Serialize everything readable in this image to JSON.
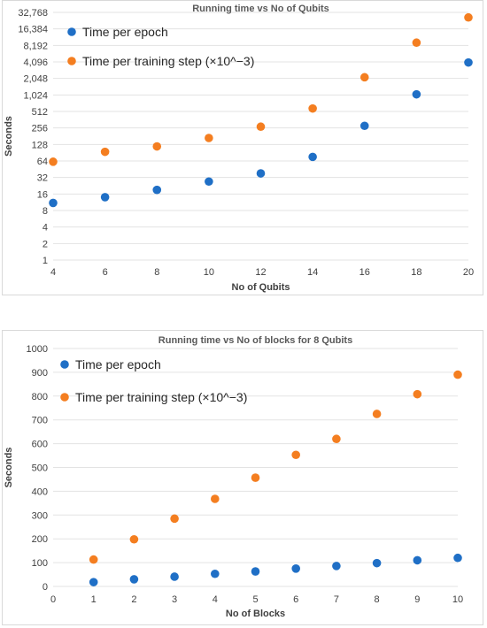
{
  "chart_data": [
    {
      "type": "scatter",
      "title": "Running time vs No of Qubits",
      "xlabel": "No of Qubits",
      "ylabel": "Seconds",
      "y_scale": "log2",
      "xlim": [
        4,
        20
      ],
      "ylim": [
        1,
        32768
      ],
      "x_ticks": [
        "4",
        "6",
        "8",
        "10",
        "12",
        "14",
        "16",
        "18",
        "20"
      ],
      "y_ticks": [
        "1",
        "2",
        "4",
        "8",
        "16",
        "32",
        "64",
        "128",
        "256",
        "512",
        "1,024",
        "2,048",
        "4,096",
        "8,192",
        "16,384",
        "32,768"
      ],
      "grid": true,
      "legend_position": "top-left",
      "series": [
        {
          "name": "Time per epoch",
          "color": "#1f6fc6",
          "x": [
            4,
            6,
            8,
            10,
            12,
            14,
            16,
            18,
            20
          ],
          "y": [
            11,
            14,
            19,
            27,
            38,
            76,
            280,
            1050,
            4000
          ]
        },
        {
          "name": "Time per training step (×10^−3)",
          "color": "#f47e20",
          "x": [
            4,
            6,
            8,
            10,
            12,
            14,
            16,
            18,
            20
          ],
          "y": [
            62,
            94,
            118,
            168,
            270,
            580,
            2150,
            9200,
            26500
          ]
        }
      ]
    },
    {
      "type": "scatter",
      "title": "Running time vs No of blocks for 8 Qubits",
      "xlabel": "No of Blocks",
      "ylabel": "Seconds",
      "xlim": [
        0,
        10
      ],
      "ylim": [
        0,
        1000
      ],
      "x_ticks": [
        "0",
        "1",
        "2",
        "3",
        "4",
        "5",
        "6",
        "7",
        "8",
        "9",
        "10"
      ],
      "y_ticks": [
        "0",
        "100",
        "200",
        "300",
        "400",
        "500",
        "600",
        "700",
        "800",
        "900",
        "1000"
      ],
      "grid": true,
      "legend_position": "top-left",
      "series": [
        {
          "name": "Time per epoch",
          "color": "#1f6fc6",
          "x": [
            1,
            2,
            3,
            4,
            5,
            6,
            7,
            8,
            9,
            10
          ],
          "y": [
            18,
            30,
            41,
            53,
            63,
            75,
            86,
            98,
            110,
            120
          ]
        },
        {
          "name": "Time per training step (×10^−3)",
          "color": "#f47e20",
          "x": [
            1,
            2,
            3,
            4,
            5,
            6,
            7,
            8,
            9,
            10
          ],
          "y": [
            113,
            198,
            285,
            368,
            457,
            553,
            620,
            725,
            808,
            890
          ]
        }
      ]
    }
  ]
}
